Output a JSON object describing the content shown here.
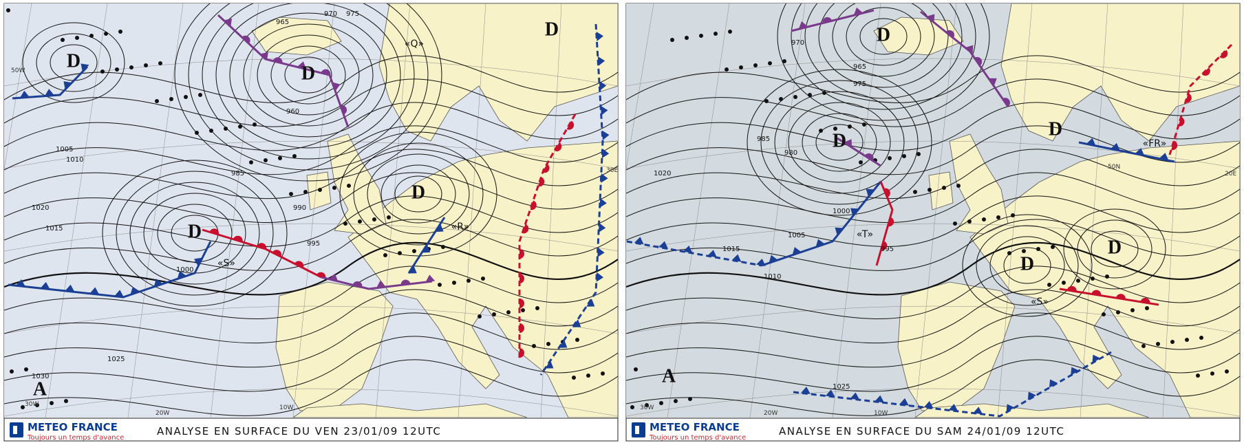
{
  "maps": [
    {
      "footer": {
        "brand": "METEO FRANCE",
        "tagline": "Toujours un temps d'avance",
        "caption": "ANALYSE EN SURFACE DU VEN 23/01/09 12UTC"
      },
      "centers": [
        "D",
        "D",
        "D",
        "D",
        "D",
        "A"
      ],
      "front_labels": [
        "«S»",
        "«R»",
        "«Q»"
      ],
      "isobar_labels": [
        "1020",
        "1015",
        "1010",
        "1005",
        "1000",
        "995",
        "990",
        "985",
        "970",
        "975",
        "965",
        "960",
        "1025",
        "1030"
      ],
      "grid_labels": [
        "30W",
        "20W",
        "10W",
        "30E",
        "50W"
      ]
    },
    {
      "footer": {
        "brand": "METEO FRANCE",
        "tagline": "Toujours un temps d'avance",
        "caption": "ANALYSE EN SURFACE DU SAM 24/01/09 12UTC"
      },
      "centers": [
        "D",
        "D",
        "D",
        "D",
        "D",
        "A"
      ],
      "front_labels": [
        "«T»",
        "«S»",
        "«FR»"
      ],
      "isobar_labels": [
        "1020",
        "1015",
        "1010",
        "1005",
        "1000",
        "995",
        "985",
        "980",
        "975",
        "970",
        "965",
        "1025"
      ],
      "grid_labels": [
        "30W",
        "20W",
        "10W",
        "20E",
        "50N"
      ]
    }
  ]
}
